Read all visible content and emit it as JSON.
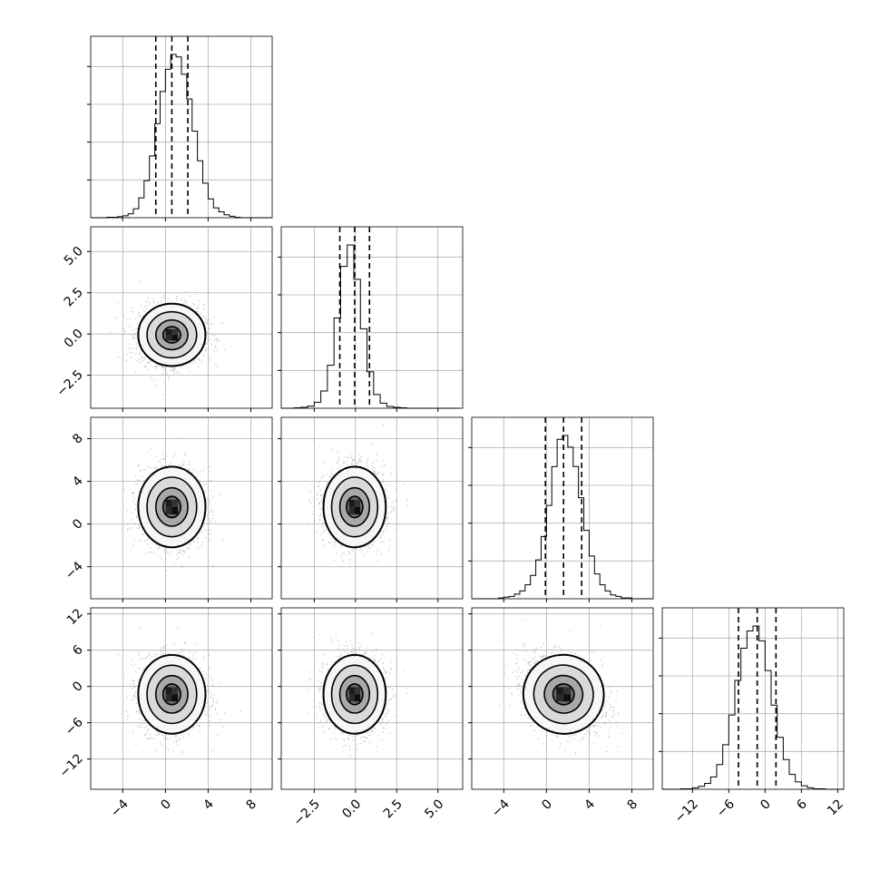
{
  "chart_data": {
    "type": "corner",
    "grid": true,
    "axes": {
      "x0": {
        "range": [
          -7,
          10
        ],
        "ticks": [
          -4,
          0,
          4,
          8
        ],
        "tick_labels": [
          "−4",
          "0",
          "4",
          "8"
        ]
      },
      "x1": {
        "range": [
          -4.5,
          6.5
        ],
        "ticks": [
          -2.5,
          0.0,
          2.5,
          5.0
        ],
        "tick_labels": [
          "−2.5",
          "0.0",
          "2.5",
          "5.0"
        ]
      },
      "x2": {
        "range": [
          -7,
          10
        ],
        "ticks": [
          -4,
          0,
          4,
          8
        ],
        "tick_labels": [
          "−4",
          "0",
          "4",
          "8"
        ]
      },
      "x3": {
        "range": [
          -17,
          13
        ],
        "ticks": [
          -12,
          -6,
          0,
          6,
          12
        ],
        "tick_labels": [
          "−12",
          "−6",
          "0",
          "6",
          "12"
        ]
      },
      "y1": {
        "range": [
          -4.5,
          6.5
        ],
        "ticks": [
          -2.5,
          0.0,
          2.5,
          5.0
        ],
        "tick_labels": [
          "−2.5",
          "0.0",
          "2.5",
          "5.0"
        ]
      },
      "y2": {
        "range": [
          -7,
          10
        ],
        "ticks": [
          -4,
          0,
          4,
          8
        ],
        "tick_labels": [
          "−4",
          "0",
          "4",
          "8"
        ]
      },
      "y3": {
        "range": [
          -17,
          13
        ],
        "ticks": [
          -12,
          -6,
          0,
          6,
          12
        ],
        "tick_labels": [
          "−12",
          "−6",
          "0",
          "6",
          "12"
        ]
      }
    },
    "parameters": [
      {
        "mean": 0.6,
        "std": 1.5,
        "quantiles": [
          -0.9,
          0.6,
          2.1
        ],
        "hist": {
          "edges": [
            -7,
            -6.5,
            -6,
            -5.5,
            -5,
            -4.5,
            -4,
            -3.5,
            -3,
            -2.5,
            -2,
            -1.5,
            -1,
            -0.5,
            0,
            0.5,
            1,
            1.5,
            2,
            2.5,
            3,
            3.5,
            4,
            4.5,
            5,
            5.5,
            6,
            6.5,
            7,
            7.5,
            8,
            8.5,
            9,
            9.5,
            10
          ],
          "counts": [
            0,
            0,
            0,
            1,
            1,
            2,
            4,
            8,
            18,
            40,
            75,
            125,
            190,
            255,
            300,
            330,
            325,
            290,
            240,
            175,
            115,
            70,
            38,
            20,
            12,
            6,
            3,
            1,
            0,
            0,
            0,
            0,
            0,
            0
          ]
        }
      },
      {
        "mean": -0.05,
        "std": 0.9,
        "quantiles": [
          -0.95,
          -0.05,
          0.85
        ],
        "hist": {
          "edges": [
            -4.5,
            -4.1,
            -3.7,
            -3.3,
            -2.9,
            -2.5,
            -2.1,
            -1.7,
            -1.3,
            -0.9,
            -0.5,
            -0.1,
            0.3,
            0.7,
            1.1,
            1.5,
            1.9,
            2.3,
            2.7,
            3.1,
            3.5,
            3.9,
            4.3,
            4.7,
            5.1,
            5.5,
            5.9,
            6.3
          ],
          "counts": [
            0,
            0,
            1,
            2,
            5,
            14,
            40,
            100,
            210,
            330,
            380,
            300,
            185,
            85,
            32,
            12,
            4,
            2,
            1,
            0,
            0,
            0,
            0,
            0,
            0,
            0,
            0
          ]
        }
      },
      {
        "mean": 1.6,
        "std": 1.8,
        "quantiles": [
          -0.1,
          1.6,
          3.3
        ],
        "hist": {
          "edges": [
            -7,
            -6.5,
            -6,
            -5.5,
            -5,
            -4.5,
            -4,
            -3.5,
            -3,
            -2.5,
            -2,
            -1.5,
            -1,
            -0.5,
            0,
            0.5,
            1,
            1.5,
            2,
            2.5,
            3,
            3.5,
            4,
            4.5,
            5,
            5.5,
            6,
            6.5,
            7,
            7.5,
            8,
            8.5,
            9,
            9.5,
            10
          ],
          "counts": [
            0,
            0,
            0,
            0,
            0,
            1,
            2,
            3,
            6,
            10,
            18,
            30,
            50,
            80,
            120,
            170,
            205,
            210,
            195,
            170,
            130,
            88,
            55,
            32,
            18,
            10,
            5,
            3,
            1,
            1,
            0,
            0,
            0,
            0
          ]
        }
      },
      {
        "mean": -1.3,
        "std": 3.1,
        "quantiles": [
          -4.4,
          -1.3,
          1.8
        ],
        "hist": {
          "edges": [
            -17,
            -16,
            -15,
            -14,
            -13,
            -12,
            -11,
            -10,
            -9,
            -8,
            -7,
            -6,
            -5,
            -4,
            -3,
            -2,
            -1,
            0,
            1,
            2,
            3,
            4,
            5,
            6,
            7,
            8,
            9,
            10,
            11,
            12,
            13
          ],
          "counts": [
            0,
            0,
            0,
            1,
            1,
            3,
            6,
            12,
            25,
            50,
            90,
            150,
            220,
            285,
            320,
            330,
            300,
            240,
            170,
            105,
            60,
            30,
            15,
            7,
            3,
            1,
            1,
            0,
            0,
            0
          ]
        }
      }
    ]
  }
}
